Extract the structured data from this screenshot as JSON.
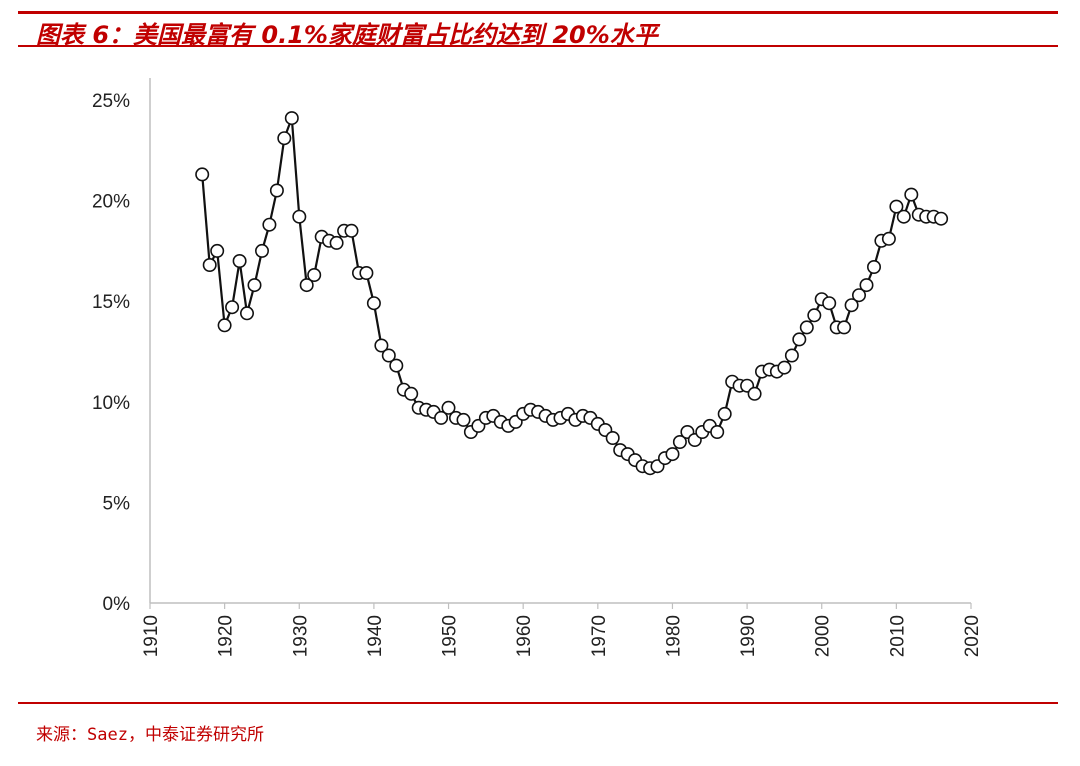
{
  "header": {
    "title": "图表 6：美国最富有 0.1%家庭财富占比约达到 20%水平"
  },
  "footer": {
    "source": "来源：Saez，中泰证券研究所"
  },
  "colors": {
    "accent": "#c00000",
    "line": "#111111",
    "marker_fill": "#ffffff"
  },
  "chart_data": {
    "type": "line",
    "title": "图表 6：美国最富有 0.1%家庭财富占比约达到 20%水平",
    "xlabel": "",
    "ylabel": "",
    "xlim": [
      1910,
      2020
    ],
    "ylim": [
      0,
      25
    ],
    "x_ticks": [
      "1910",
      "1920",
      "1930",
      "1940",
      "1950",
      "1960",
      "1970",
      "1980",
      "1990",
      "2000",
      "2010",
      "2020"
    ],
    "y_ticks": [
      "0%",
      "5%",
      "10%",
      "15%",
      "20%",
      "25%"
    ],
    "grid": false,
    "legend": "none",
    "series": [
      {
        "x": [
          1917,
          1918,
          1919,
          1920,
          1921,
          1922,
          1923,
          1924,
          1925,
          1926,
          1927,
          1928,
          1929,
          1930,
          1931,
          1932,
          1933,
          1934,
          1935,
          1936,
          1937,
          1938,
          1939,
          1940,
          1941,
          1942,
          1943,
          1944,
          1945,
          1946,
          1947,
          1948,
          1949,
          1950,
          1951,
          1952,
          1953,
          1954,
          1955,
          1956,
          1957,
          1958,
          1959,
          1960,
          1961,
          1962,
          1963,
          1964,
          1965,
          1966,
          1967,
          1968,
          1969,
          1970,
          1971,
          1972,
          1973,
          1974,
          1975,
          1976,
          1977,
          1978,
          1979,
          1980,
          1981,
          1982,
          1983,
          1984,
          1985,
          1986,
          1987,
          1988,
          1989,
          1990,
          1991,
          1992,
          1993,
          1994,
          1995,
          1996,
          1997,
          1998,
          1999,
          2000,
          2001,
          2002,
          2003,
          2004,
          2005,
          2006,
          2007,
          2008,
          2009,
          2010,
          2011,
          2012,
          2013,
          2014,
          2015,
          2016
        ],
        "values": [
          21.3,
          16.8,
          17.5,
          13.8,
          14.7,
          17.0,
          14.4,
          15.8,
          17.5,
          18.8,
          20.5,
          23.1,
          24.1,
          19.2,
          15.8,
          16.3,
          18.2,
          18.0,
          17.9,
          18.5,
          18.5,
          16.4,
          16.4,
          14.9,
          12.8,
          12.3,
          11.8,
          10.6,
          10.4,
          9.7,
          9.6,
          9.5,
          9.2,
          9.7,
          9.2,
          9.1,
          8.5,
          8.8,
          9.2,
          9.3,
          9.0,
          8.8,
          9.0,
          9.4,
          9.6,
          9.5,
          9.3,
          9.1,
          9.2,
          9.4,
          9.1,
          9.3,
          9.2,
          8.9,
          8.6,
          8.2,
          7.6,
          7.4,
          7.1,
          6.8,
          6.7,
          6.8,
          7.2,
          7.4,
          8.0,
          8.5,
          8.1,
          8.5,
          8.8,
          8.5,
          9.4,
          11.0,
          10.8,
          10.8,
          10.4,
          11.5,
          11.6,
          11.5,
          11.7,
          12.3,
          13.1,
          13.7,
          14.3,
          15.1,
          14.9,
          13.7,
          13.7,
          14.8,
          15.3,
          15.8,
          16.7,
          18.0,
          18.1,
          19.7,
          19.2,
          20.3,
          19.3,
          19.2,
          19.2,
          19.1
        ]
      }
    ]
  }
}
